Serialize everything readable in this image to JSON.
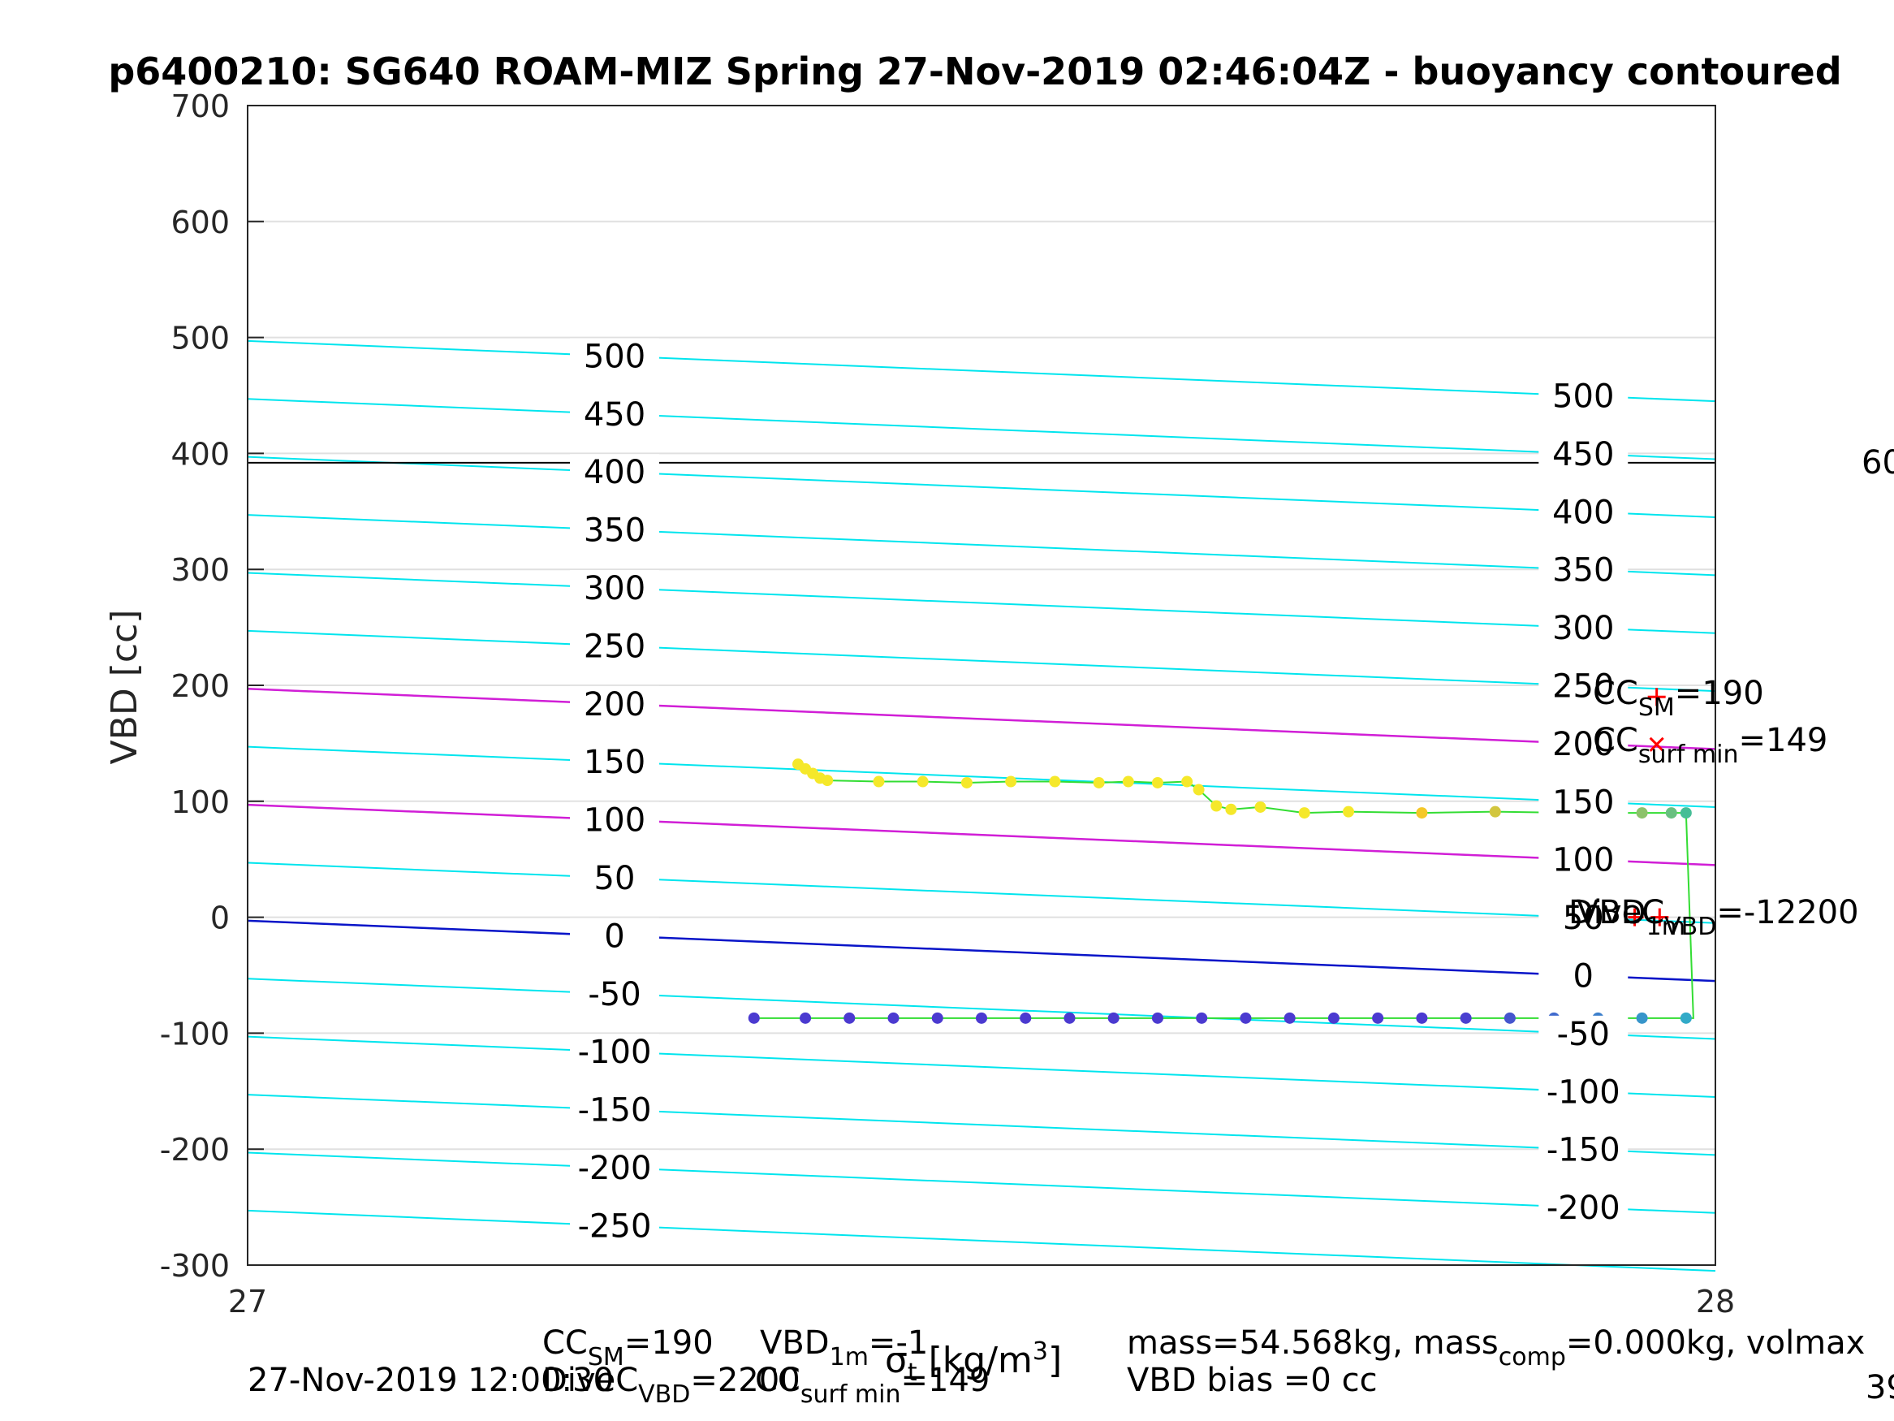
{
  "chart_data": {
    "type": "scatter",
    "title": "p6400210: SG640 ROAM-MIZ Spring 27-Nov-2019 02:46:04Z - buoyancy contoured",
    "ylabel": "VBD [cc]",
    "xlabel": "σ_t [kg/m³]",
    "xlim": [
      27,
      28
    ],
    "ylim": [
      -300,
      700
    ],
    "x_ticks": [
      "27",
      "28"
    ],
    "y_ticks": [
      "700",
      "600",
      "500",
      "400",
      "300",
      "200",
      "100",
      "0",
      "-100",
      "-200",
      "-300"
    ],
    "grid": true,
    "colors": {
      "contour": "#00e5ee",
      "bounds": "#d21ed6",
      "neutral": "#0a14c8",
      "hline": "#000000",
      "path": "#33dd33",
      "marker": "#ff0000"
    },
    "hline_y": 392,
    "right_axis_partial": [
      "60",
      "39"
    ],
    "contour_lines": [
      {
        "label": "500",
        "y0": 497,
        "y1": 445,
        "label_left": "500",
        "label_right": "500"
      },
      {
        "label": "450",
        "y0": 447,
        "y1": 395,
        "label_left": "450",
        "label_right": "450"
      },
      {
        "label": "400",
        "y0": 397,
        "y1": 345,
        "label_left": "400",
        "label_right": "400"
      },
      {
        "label": "350",
        "y0": 347,
        "y1": 295,
        "label_left": "350",
        "label_right": "350"
      },
      {
        "label": "300",
        "y0": 297,
        "y1": 245,
        "label_left": "300",
        "label_right": "300"
      },
      {
        "label": "250",
        "y0": 247,
        "y1": 195,
        "label_left": "250",
        "label_right": "250"
      },
      {
        "label": "200",
        "y0": 197,
        "y1": 145,
        "label_left": "200",
        "label_right": "200"
      },
      {
        "label": "150",
        "y0": 147,
        "y1": 95,
        "label_left": "150",
        "label_right": "150"
      },
      {
        "label": "100",
        "y0": 97,
        "y1": 45,
        "label_left": "100",
        "label_right": "100"
      },
      {
        "label": "50",
        "y0": 47,
        "y1": -5,
        "label_left": "50",
        "label_right": "50"
      },
      {
        "label": "0",
        "y0": -3,
        "y1": -55,
        "label_left": "0",
        "label_right": "0"
      },
      {
        "label": "-50",
        "y0": -53,
        "y1": -105,
        "label_left": "-50",
        "label_right": "-50"
      },
      {
        "label": "-100",
        "y0": -103,
        "y1": -155,
        "label_left": "-100",
        "label_right": "-100"
      },
      {
        "label": "-150",
        "y0": -153,
        "y1": -205,
        "label_left": "-150",
        "label_right": "-150"
      },
      {
        "label": "-200",
        "y0": -203,
        "y1": -255,
        "label_left": "-200",
        "label_right": "-200"
      },
      {
        "label": "-250",
        "y0": -253,
        "y1": -305,
        "label_left": "-250",
        "label_right": "-250"
      }
    ],
    "special_lines": [
      {
        "kind": "bounds",
        "y0": 197,
        "y1": 145
      },
      {
        "kind": "bounds",
        "y0": 97,
        "y1": 45
      },
      {
        "kind": "neutral",
        "y0": -3,
        "y1": -55
      }
    ],
    "dive_points": [
      [
        27.375,
        132
      ],
      [
        27.38,
        128
      ],
      [
        27.385,
        124
      ],
      [
        27.39,
        120
      ],
      [
        27.395,
        118
      ],
      [
        27.43,
        117
      ],
      [
        27.46,
        117
      ],
      [
        27.49,
        116
      ],
      [
        27.52,
        117
      ],
      [
        27.55,
        117
      ],
      [
        27.58,
        116
      ],
      [
        27.6,
        117
      ],
      [
        27.62,
        116
      ],
      [
        27.64,
        117
      ],
      [
        27.648,
        110
      ],
      [
        27.66,
        96
      ],
      [
        27.67,
        93
      ],
      [
        27.69,
        95
      ],
      [
        27.72,
        90
      ],
      [
        27.75,
        91
      ],
      [
        27.8,
        90
      ],
      [
        27.85,
        91
      ],
      [
        27.9,
        90
      ],
      [
        27.95,
        90
      ],
      [
        27.97,
        90
      ],
      [
        27.98,
        90
      ]
    ],
    "climb_points": [
      [
        27.345,
        -87
      ],
      [
        27.38,
        -87
      ],
      [
        27.41,
        -87
      ],
      [
        27.44,
        -87
      ],
      [
        27.47,
        -87
      ],
      [
        27.5,
        -87
      ],
      [
        27.53,
        -87
      ],
      [
        27.56,
        -87
      ],
      [
        27.59,
        -87
      ],
      [
        27.62,
        -87
      ],
      [
        27.65,
        -87
      ],
      [
        27.68,
        -87
      ],
      [
        27.71,
        -87
      ],
      [
        27.74,
        -87
      ],
      [
        27.77,
        -87
      ],
      [
        27.8,
        -87
      ],
      [
        27.83,
        -87
      ],
      [
        27.86,
        -87
      ],
      [
        27.89,
        -87
      ],
      [
        27.92,
        -87
      ],
      [
        27.95,
        -87
      ],
      [
        27.98,
        -87
      ]
    ],
    "markers": [
      {
        "symbol": "+",
        "x": 27.96,
        "y": 190
      },
      {
        "symbol": "x",
        "x": 27.96,
        "y": 149
      },
      {
        "symbol": "+",
        "x": 27.945,
        "y": 0
      },
      {
        "symbol": "+",
        "x": 27.962,
        "y": 0
      }
    ],
    "annotations": {
      "cc_sm": "CC",
      "cc_sm_sub": "SM",
      "cc_sm_val": "=190",
      "cc_surf": "CC",
      "cc_surf_sub": "surf min",
      "cc_surf_val": "=149",
      "right_overlap_1": "DiveC",
      "right_overlap_2": "VBD",
      "right_overlap_sub": "1m",
      "right_overlap_sub2": "VBD",
      "right_overlap_val": "=-12200"
    },
    "footer": {
      "date": "27-Nov-2019 12:00:30",
      "cc_sm": "CC",
      "cc_sm_sub": "SM",
      "cc_sm_val": "=190",
      "vbd": "VBD",
      "vbd_sub": "1m",
      "vbd_val": "=-1",
      "dive": "DiveC",
      "dive_sub": "VBD",
      "dive_val": "=2200",
      "cc_surf": "CC",
      "cc_surf_sub": "surf min",
      "cc_surf_val": "=149",
      "mass": "mass=54.568kg, mass",
      "mass_sub": "comp",
      "mass_rest": "=0.000kg, volmax",
      "vbd_bias": "VBD bias =0 cc"
    }
  }
}
